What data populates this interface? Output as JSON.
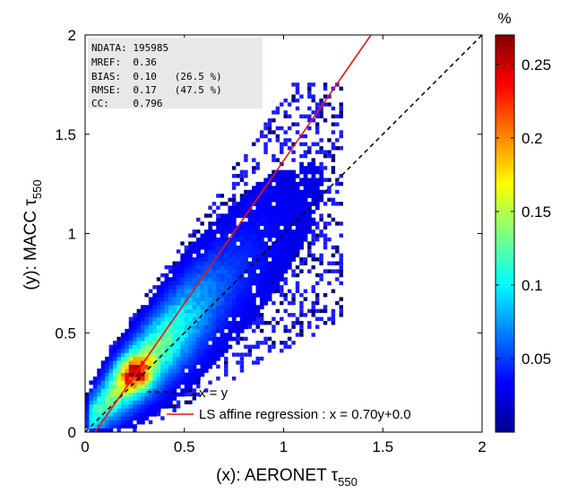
{
  "chart_data": [
    {
      "type": "heatmap",
      "title": "",
      "xlabel": "(x): AERONET τ",
      "xlabel_sub": "550",
      "ylabel": "(y): MACC τ",
      "ylabel_sub": "550",
      "xlim": [
        0,
        2
      ],
      "ylim": [
        0,
        2
      ],
      "x_ticks": [
        "0",
        "0.5",
        "1",
        "1.5",
        "2"
      ],
      "y_ticks": [
        "0",
        "0.5",
        "1",
        "1.5",
        "2"
      ],
      "x_tick_values": [
        0,
        0.5,
        1,
        1.5,
        2
      ],
      "y_tick_values": [
        0,
        0.5,
        1,
        1.5,
        2
      ],
      "grid": false,
      "stats_box": {
        "location": "top-left",
        "lines": [
          "NDATA: 195985",
          "MREF:  0.36",
          "BIAS:  0.10   (26.5 %)",
          "RMSE:  0.17   (47.5 %)",
          "CC:    0.796"
        ]
      },
      "series": [
        {
          "name": "x = y",
          "style": "dashed",
          "color": "#000000",
          "points": [
            [
              0,
              0
            ],
            [
              2,
              2
            ]
          ]
        },
        {
          "name": "LS affine regression : x = 0.70y+0.0",
          "style": "solid",
          "color": "#ee1111",
          "points": [
            [
              0.05,
              0
            ],
            [
              1.44,
              2
            ]
          ]
        }
      ],
      "density": {
        "description_units": "percent of samples per bin",
        "peak": {
          "x": 0.25,
          "y": 0.3,
          "value": 0.26
        },
        "ridge": [
          [
            0.1,
            0.15
          ],
          [
            0.2,
            0.25
          ],
          [
            0.35,
            0.4
          ],
          [
            0.5,
            0.55
          ],
          [
            0.7,
            0.75
          ],
          [
            0.9,
            0.95
          ]
        ]
      },
      "legend": {
        "location": "bottom-right"
      }
    },
    {
      "type": "colorbar",
      "title": "%",
      "range": [
        0,
        0.27
      ],
      "ticks": [
        "0.05",
        "0.1",
        "0.15",
        "0.2",
        "0.25"
      ],
      "tick_values": [
        0.05,
        0.1,
        0.15,
        0.2,
        0.25
      ],
      "colormap": "jet"
    }
  ]
}
